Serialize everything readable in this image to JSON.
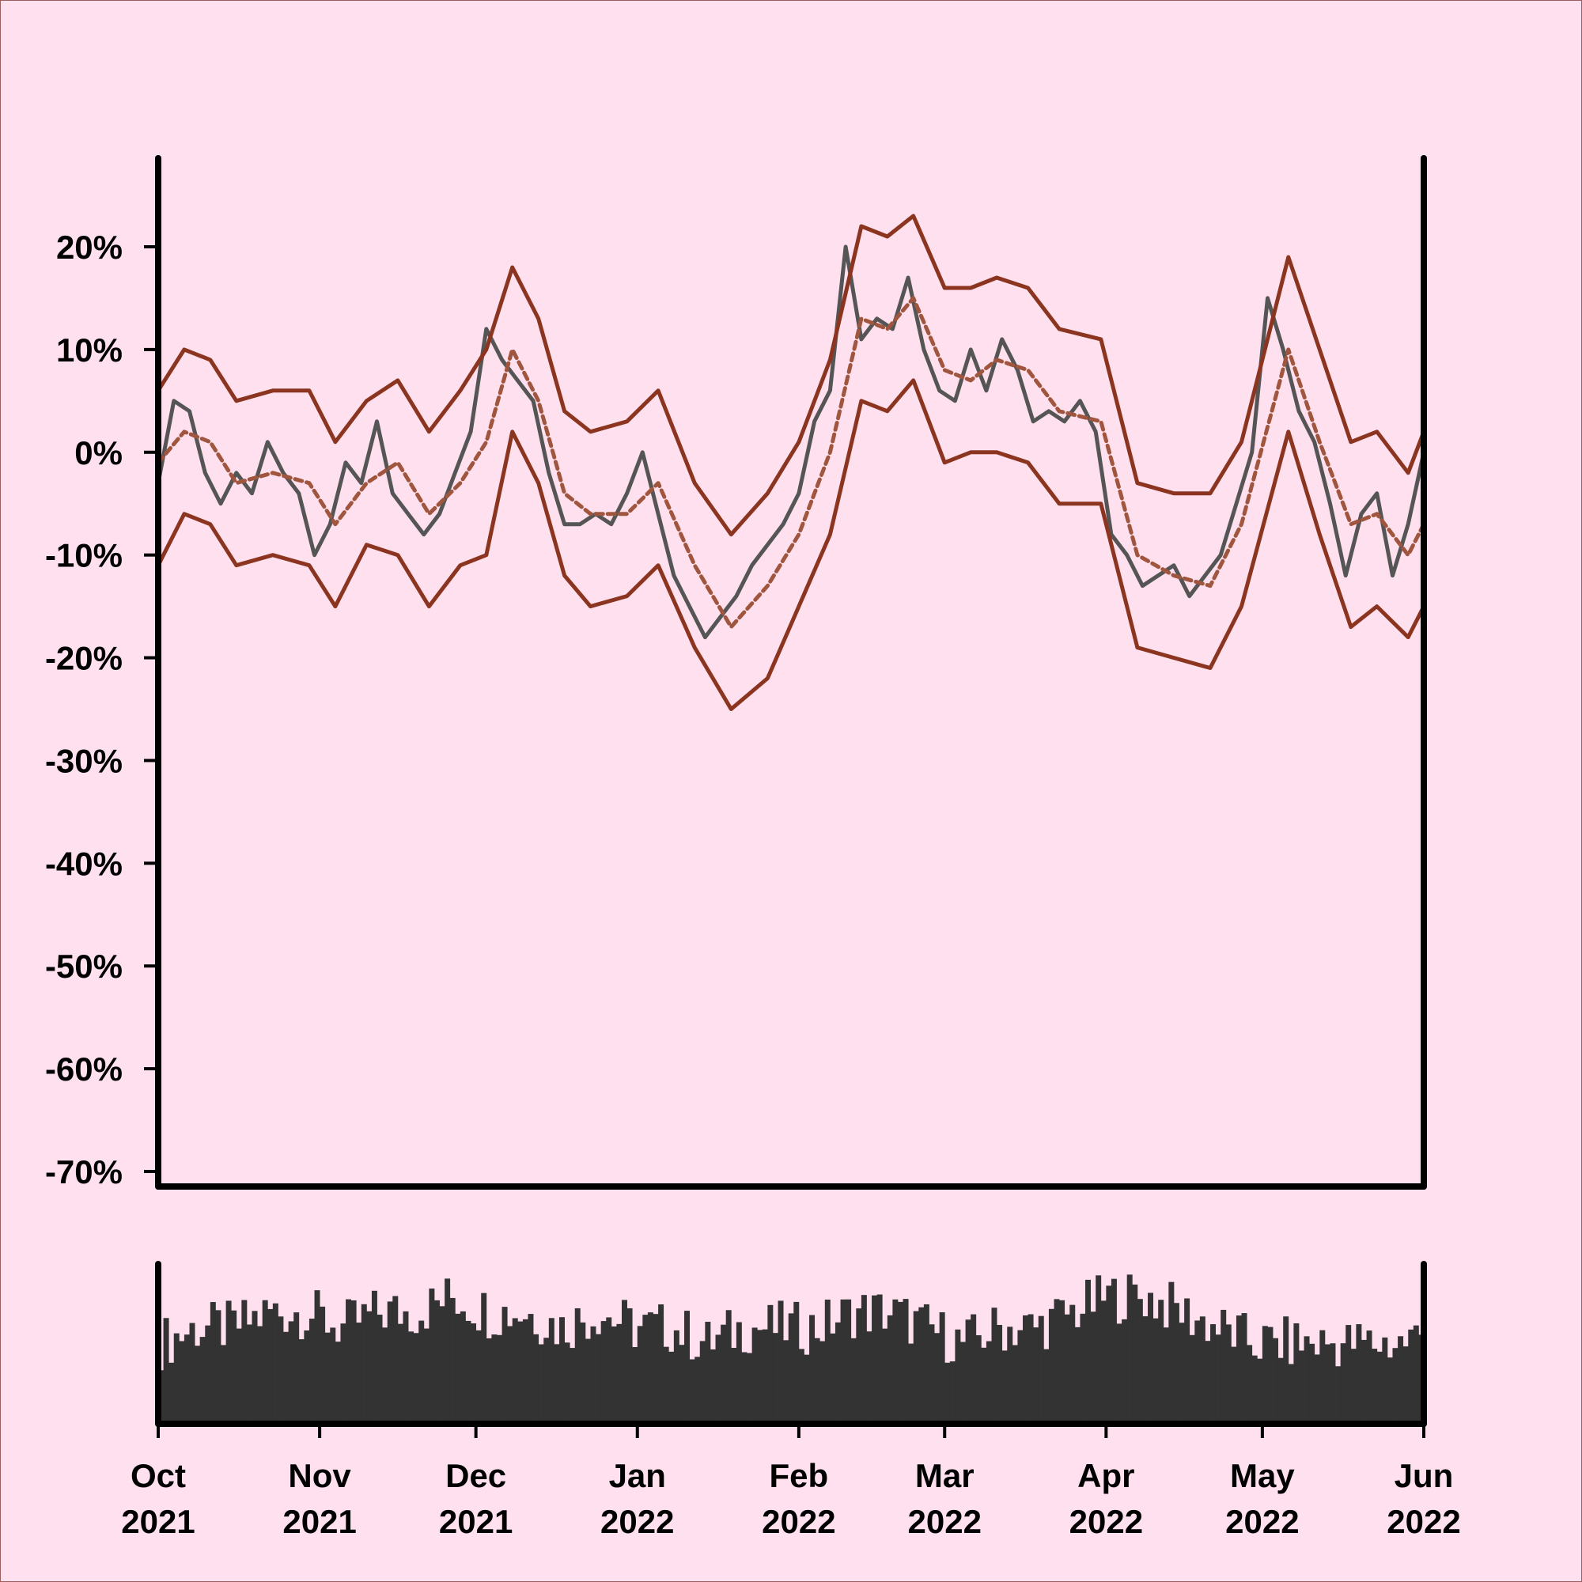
{
  "chart_data": {
    "type": "line",
    "title": "",
    "xlabel": "",
    "ylabel": "",
    "ylim": [
      -70,
      20
    ],
    "y_ticks": [
      {
        "value": 20,
        "label": "20%"
      },
      {
        "value": 10,
        "label": "10%"
      },
      {
        "value": 0,
        "label": "0%"
      },
      {
        "value": -10,
        "label": "-10%"
      },
      {
        "value": -20,
        "label": "-20%"
      },
      {
        "value": -30,
        "label": "-30%"
      },
      {
        "value": -40,
        "label": "-40%"
      },
      {
        "value": -50,
        "label": "-50%"
      },
      {
        "value": -60,
        "label": "-60%"
      },
      {
        "value": -70,
        "label": "-70%"
      }
    ],
    "x_range": [
      "2021-10-01",
      "2022-06-01"
    ],
    "x_ticks": [
      {
        "date": "2021-10-01",
        "month": "Oct",
        "year": "2021"
      },
      {
        "date": "2021-11-01",
        "month": "Nov",
        "year": "2021"
      },
      {
        "date": "2021-12-01",
        "month": "Dec",
        "year": "2021"
      },
      {
        "date": "2022-01-01",
        "month": "Jan",
        "year": "2022"
      },
      {
        "date": "2022-02-01",
        "month": "Feb",
        "year": "2022"
      },
      {
        "date": "2022-03-01",
        "month": "Mar",
        "year": "2022"
      },
      {
        "date": "2022-04-01",
        "month": "Apr",
        "year": "2022"
      },
      {
        "date": "2022-05-01",
        "month": "May",
        "year": "2022"
      },
      {
        "date": "2022-06-01",
        "month": "Jun",
        "year": "2022"
      }
    ],
    "grid": false,
    "legend": "none",
    "series": [
      {
        "role": "value",
        "color": "#555555",
        "style": "solid",
        "points": [
          [
            "2021-10-01",
            -3
          ],
          [
            "2021-10-04",
            5
          ],
          [
            "2021-10-07",
            4
          ],
          [
            "2021-10-10",
            -2
          ],
          [
            "2021-10-13",
            -5
          ],
          [
            "2021-10-16",
            -2
          ],
          [
            "2021-10-19",
            -4
          ],
          [
            "2021-10-22",
            1
          ],
          [
            "2021-10-25",
            -2
          ],
          [
            "2021-10-28",
            -4
          ],
          [
            "2021-10-31",
            -10
          ],
          [
            "2021-11-03",
            -7
          ],
          [
            "2021-11-06",
            -1
          ],
          [
            "2021-11-09",
            -3
          ],
          [
            "2021-11-12",
            3
          ],
          [
            "2021-11-15",
            -4
          ],
          [
            "2021-11-18",
            -6
          ],
          [
            "2021-11-21",
            -8
          ],
          [
            "2021-11-24",
            -6
          ],
          [
            "2021-11-27",
            -2
          ],
          [
            "2021-11-30",
            2
          ],
          [
            "2021-12-03",
            12
          ],
          [
            "2021-12-06",
            9
          ],
          [
            "2021-12-09",
            7
          ],
          [
            "2021-12-12",
            5
          ],
          [
            "2021-12-15",
            -2
          ],
          [
            "2021-12-18",
            -7
          ],
          [
            "2021-12-21",
            -7
          ],
          [
            "2021-12-24",
            -6
          ],
          [
            "2021-12-27",
            -7
          ],
          [
            "2021-12-30",
            -4
          ],
          [
            "2022-01-02",
            0
          ],
          [
            "2022-01-05",
            -6
          ],
          [
            "2022-01-08",
            -12
          ],
          [
            "2022-01-11",
            -15
          ],
          [
            "2022-01-14",
            -18
          ],
          [
            "2022-01-17",
            -16
          ],
          [
            "2022-01-20",
            -14
          ],
          [
            "2022-01-23",
            -11
          ],
          [
            "2022-01-26",
            -9
          ],
          [
            "2022-01-29",
            -7
          ],
          [
            "2022-02-01",
            -4
          ],
          [
            "2022-02-04",
            3
          ],
          [
            "2022-02-07",
            6
          ],
          [
            "2022-02-10",
            20
          ],
          [
            "2022-02-13",
            11
          ],
          [
            "2022-02-16",
            13
          ],
          [
            "2022-02-19",
            12
          ],
          [
            "2022-02-22",
            17
          ],
          [
            "2022-02-25",
            10
          ],
          [
            "2022-02-28",
            6
          ],
          [
            "2022-03-03",
            5
          ],
          [
            "2022-03-06",
            10
          ],
          [
            "2022-03-09",
            6
          ],
          [
            "2022-03-12",
            11
          ],
          [
            "2022-03-15",
            8
          ],
          [
            "2022-03-18",
            3
          ],
          [
            "2022-03-21",
            4
          ],
          [
            "2022-03-24",
            3
          ],
          [
            "2022-03-27",
            5
          ],
          [
            "2022-03-30",
            2
          ],
          [
            "2022-04-02",
            -8
          ],
          [
            "2022-04-05",
            -10
          ],
          [
            "2022-04-08",
            -13
          ],
          [
            "2022-04-11",
            -12
          ],
          [
            "2022-04-14",
            -11
          ],
          [
            "2022-04-17",
            -14
          ],
          [
            "2022-04-20",
            -12
          ],
          [
            "2022-04-23",
            -10
          ],
          [
            "2022-04-26",
            -5
          ],
          [
            "2022-04-29",
            0
          ],
          [
            "2022-05-02",
            15
          ],
          [
            "2022-05-05",
            10
          ],
          [
            "2022-05-08",
            4
          ],
          [
            "2022-05-11",
            1
          ],
          [
            "2022-05-14",
            -5
          ],
          [
            "2022-05-17",
            -12
          ],
          [
            "2022-05-20",
            -6
          ],
          [
            "2022-05-23",
            -4
          ],
          [
            "2022-05-26",
            -12
          ],
          [
            "2022-05-29",
            -7
          ],
          [
            "2022-06-01",
            0
          ]
        ]
      },
      {
        "role": "moving-average",
        "color": "#a0563e",
        "style": "dashed",
        "points": [
          [
            "2021-10-01",
            -1
          ],
          [
            "2021-10-06",
            2
          ],
          [
            "2021-10-11",
            1
          ],
          [
            "2021-10-16",
            -3
          ],
          [
            "2021-10-23",
            -2
          ],
          [
            "2021-10-30",
            -3
          ],
          [
            "2021-11-04",
            -7
          ],
          [
            "2021-11-10",
            -3
          ],
          [
            "2021-11-16",
            -1
          ],
          [
            "2021-11-22",
            -6
          ],
          [
            "2021-11-28",
            -3
          ],
          [
            "2021-12-03",
            1
          ],
          [
            "2021-12-08",
            10
          ],
          [
            "2021-12-13",
            5
          ],
          [
            "2021-12-18",
            -4
          ],
          [
            "2021-12-23",
            -6
          ],
          [
            "2021-12-30",
            -6
          ],
          [
            "2022-01-05",
            -3
          ],
          [
            "2022-01-12",
            -11
          ],
          [
            "2022-01-19",
            -17
          ],
          [
            "2022-01-26",
            -13
          ],
          [
            "2022-02-01",
            -8
          ],
          [
            "2022-02-07",
            0
          ],
          [
            "2022-02-13",
            13
          ],
          [
            "2022-02-18",
            12
          ],
          [
            "2022-02-23",
            15
          ],
          [
            "2022-03-01",
            8
          ],
          [
            "2022-03-06",
            7
          ],
          [
            "2022-03-11",
            9
          ],
          [
            "2022-03-17",
            8
          ],
          [
            "2022-03-23",
            4
          ],
          [
            "2022-03-31",
            3
          ],
          [
            "2022-04-07",
            -10
          ],
          [
            "2022-04-14",
            -12
          ],
          [
            "2022-04-21",
            -13
          ],
          [
            "2022-04-27",
            -7
          ],
          [
            "2022-05-06",
            10
          ],
          [
            "2022-05-12",
            1
          ],
          [
            "2022-05-18",
            -7
          ],
          [
            "2022-05-23",
            -6
          ],
          [
            "2022-05-29",
            -10
          ],
          [
            "2022-06-01",
            -7
          ]
        ]
      },
      {
        "role": "upper-band",
        "color": "#8b3520",
        "style": "solid",
        "points": [
          [
            "2021-10-01",
            6
          ],
          [
            "2021-10-06",
            10
          ],
          [
            "2021-10-11",
            9
          ],
          [
            "2021-10-16",
            5
          ],
          [
            "2021-10-23",
            6
          ],
          [
            "2021-10-30",
            6
          ],
          [
            "2021-11-04",
            1
          ],
          [
            "2021-11-10",
            5
          ],
          [
            "2021-11-16",
            7
          ],
          [
            "2021-11-22",
            2
          ],
          [
            "2021-11-28",
            6
          ],
          [
            "2021-12-03",
            10
          ],
          [
            "2021-12-08",
            18
          ],
          [
            "2021-12-13",
            13
          ],
          [
            "2021-12-18",
            4
          ],
          [
            "2021-12-23",
            2
          ],
          [
            "2021-12-30",
            3
          ],
          [
            "2022-01-05",
            6
          ],
          [
            "2022-01-12",
            -3
          ],
          [
            "2022-01-19",
            -8
          ],
          [
            "2022-01-26",
            -4
          ],
          [
            "2022-02-01",
            1
          ],
          [
            "2022-02-07",
            9
          ],
          [
            "2022-02-13",
            22
          ],
          [
            "2022-02-18",
            21
          ],
          [
            "2022-02-23",
            23
          ],
          [
            "2022-03-01",
            16
          ],
          [
            "2022-03-06",
            16
          ],
          [
            "2022-03-11",
            17
          ],
          [
            "2022-03-17",
            16
          ],
          [
            "2022-03-23",
            12
          ],
          [
            "2022-03-31",
            11
          ],
          [
            "2022-04-07",
            -3
          ],
          [
            "2022-04-14",
            -4
          ],
          [
            "2022-04-21",
            -4
          ],
          [
            "2022-04-27",
            1
          ],
          [
            "2022-05-06",
            19
          ],
          [
            "2022-05-12",
            10
          ],
          [
            "2022-05-18",
            1
          ],
          [
            "2022-05-23",
            2
          ],
          [
            "2022-05-29",
            -2
          ],
          [
            "2022-06-01",
            2
          ]
        ]
      },
      {
        "role": "lower-band",
        "color": "#8b3520",
        "style": "solid",
        "points": [
          [
            "2021-10-01",
            -11
          ],
          [
            "2021-10-06",
            -6
          ],
          [
            "2021-10-11",
            -7
          ],
          [
            "2021-10-16",
            -11
          ],
          [
            "2021-10-23",
            -10
          ],
          [
            "2021-10-30",
            -11
          ],
          [
            "2021-11-04",
            -15
          ],
          [
            "2021-11-10",
            -9
          ],
          [
            "2021-11-16",
            -10
          ],
          [
            "2021-11-22",
            -15
          ],
          [
            "2021-11-28",
            -11
          ],
          [
            "2021-12-03",
            -10
          ],
          [
            "2021-12-08",
            2
          ],
          [
            "2021-12-13",
            -3
          ],
          [
            "2021-12-18",
            -12
          ],
          [
            "2021-12-23",
            -15
          ],
          [
            "2021-12-30",
            -14
          ],
          [
            "2022-01-05",
            -11
          ],
          [
            "2022-01-12",
            -19
          ],
          [
            "2022-01-19",
            -25
          ],
          [
            "2022-01-26",
            -22
          ],
          [
            "2022-02-01",
            -15
          ],
          [
            "2022-02-07",
            -8
          ],
          [
            "2022-02-13",
            5
          ],
          [
            "2022-02-18",
            4
          ],
          [
            "2022-02-23",
            7
          ],
          [
            "2022-03-01",
            -1
          ],
          [
            "2022-03-06",
            0
          ],
          [
            "2022-03-11",
            0
          ],
          [
            "2022-03-17",
            -1
          ],
          [
            "2022-03-23",
            -5
          ],
          [
            "2022-03-31",
            -5
          ],
          [
            "2022-04-07",
            -19
          ],
          [
            "2022-04-14",
            -20
          ],
          [
            "2022-04-21",
            -21
          ],
          [
            "2022-04-27",
            -15
          ],
          [
            "2022-05-06",
            2
          ],
          [
            "2022-05-12",
            -8
          ],
          [
            "2022-05-18",
            -17
          ],
          [
            "2022-05-23",
            -15
          ],
          [
            "2022-05-29",
            -18
          ],
          [
            "2022-06-01",
            -15
          ]
        ]
      }
    ],
    "volume_panel": {
      "type": "bar",
      "color": "#333333",
      "weekly_relative_volume": [
        0.5,
        0.6,
        0.6,
        0.7,
        0.7,
        0.6,
        0.7,
        0.7,
        0.8,
        0.7,
        0.7,
        0.6,
        0.7,
        0.6,
        0.6,
        0.5,
        0.6,
        0.6,
        0.6,
        0.7,
        0.7,
        0.6,
        0.5,
        0.6,
        0.6,
        0.7,
        0.8,
        0.8,
        0.7,
        0.6,
        0.5,
        0.5,
        0.5,
        0.5,
        0.5,
        0.6,
        0.7,
        0.8,
        0.9,
        0.9,
        0.7,
        0.6,
        0.5,
        0.5,
        0.4,
        0.6,
        0.6,
        0.6,
        0.5,
        0.4,
        0.5,
        0.6,
        0.6,
        0.6,
        0.4,
        0.5,
        0.5,
        0.6,
        0.6,
        0.5,
        0.4,
        0.4,
        0.6,
        0.7,
        0.8,
        0.9,
        0.9,
        0.8,
        0.6,
        0.4,
        0.4,
        0.5,
        0.5,
        0.6,
        0.6,
        0.5,
        0.6,
        0.6,
        0.6,
        0.6,
        0.5,
        0.4
      ]
    }
  }
}
